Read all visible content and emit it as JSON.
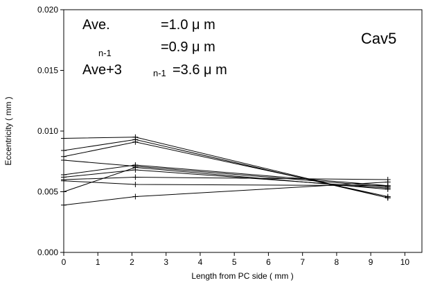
{
  "chart_data": {
    "type": "line",
    "title": "",
    "tag": "Cav5",
    "xlabel": "Length from PC side ( mm )",
    "ylabel": "Eccentricity ( mm )",
    "xlim": [
      0,
      10.5
    ],
    "ylim": [
      0,
      0.02
    ],
    "xticks": [
      "0",
      "1",
      "2",
      "3",
      "4",
      "5",
      "6",
      "7",
      "8",
      "9",
      "10"
    ],
    "yticks": [
      "0.000",
      "0.005",
      "0.010",
      "0.015",
      "0.020"
    ],
    "x": [
      0,
      2.1,
      9.5
    ],
    "series": [
      {
        "values": [
          0.0094,
          0.0095,
          0.0045
        ]
      },
      {
        "values": [
          0.0084,
          0.0093,
          0.0045
        ]
      },
      {
        "values": [
          0.0079,
          0.0091,
          0.0046
        ]
      },
      {
        "values": [
          0.0076,
          0.0071,
          0.0054
        ]
      },
      {
        "values": [
          0.0064,
          0.0072,
          0.0055
        ]
      },
      {
        "values": [
          0.0062,
          0.0068,
          0.0053
        ]
      },
      {
        "values": [
          0.006,
          0.0062,
          0.006
        ]
      },
      {
        "values": [
          0.0059,
          0.0056,
          0.0055
        ]
      },
      {
        "values": [
          0.005,
          0.007,
          0.0052
        ]
      },
      {
        "values": [
          0.0039,
          0.0046,
          0.0058
        ]
      }
    ],
    "annotations": {
      "line1_left": "Ave.",
      "line1_right": "=1.0 μ m",
      "line2_sub": "n-1",
      "line2_right": "=0.9 μ m",
      "line3_left": "Ave+3",
      "line3_sub": "n-1",
      "line3_right": "=3.6 μ m"
    },
    "grid": false
  }
}
